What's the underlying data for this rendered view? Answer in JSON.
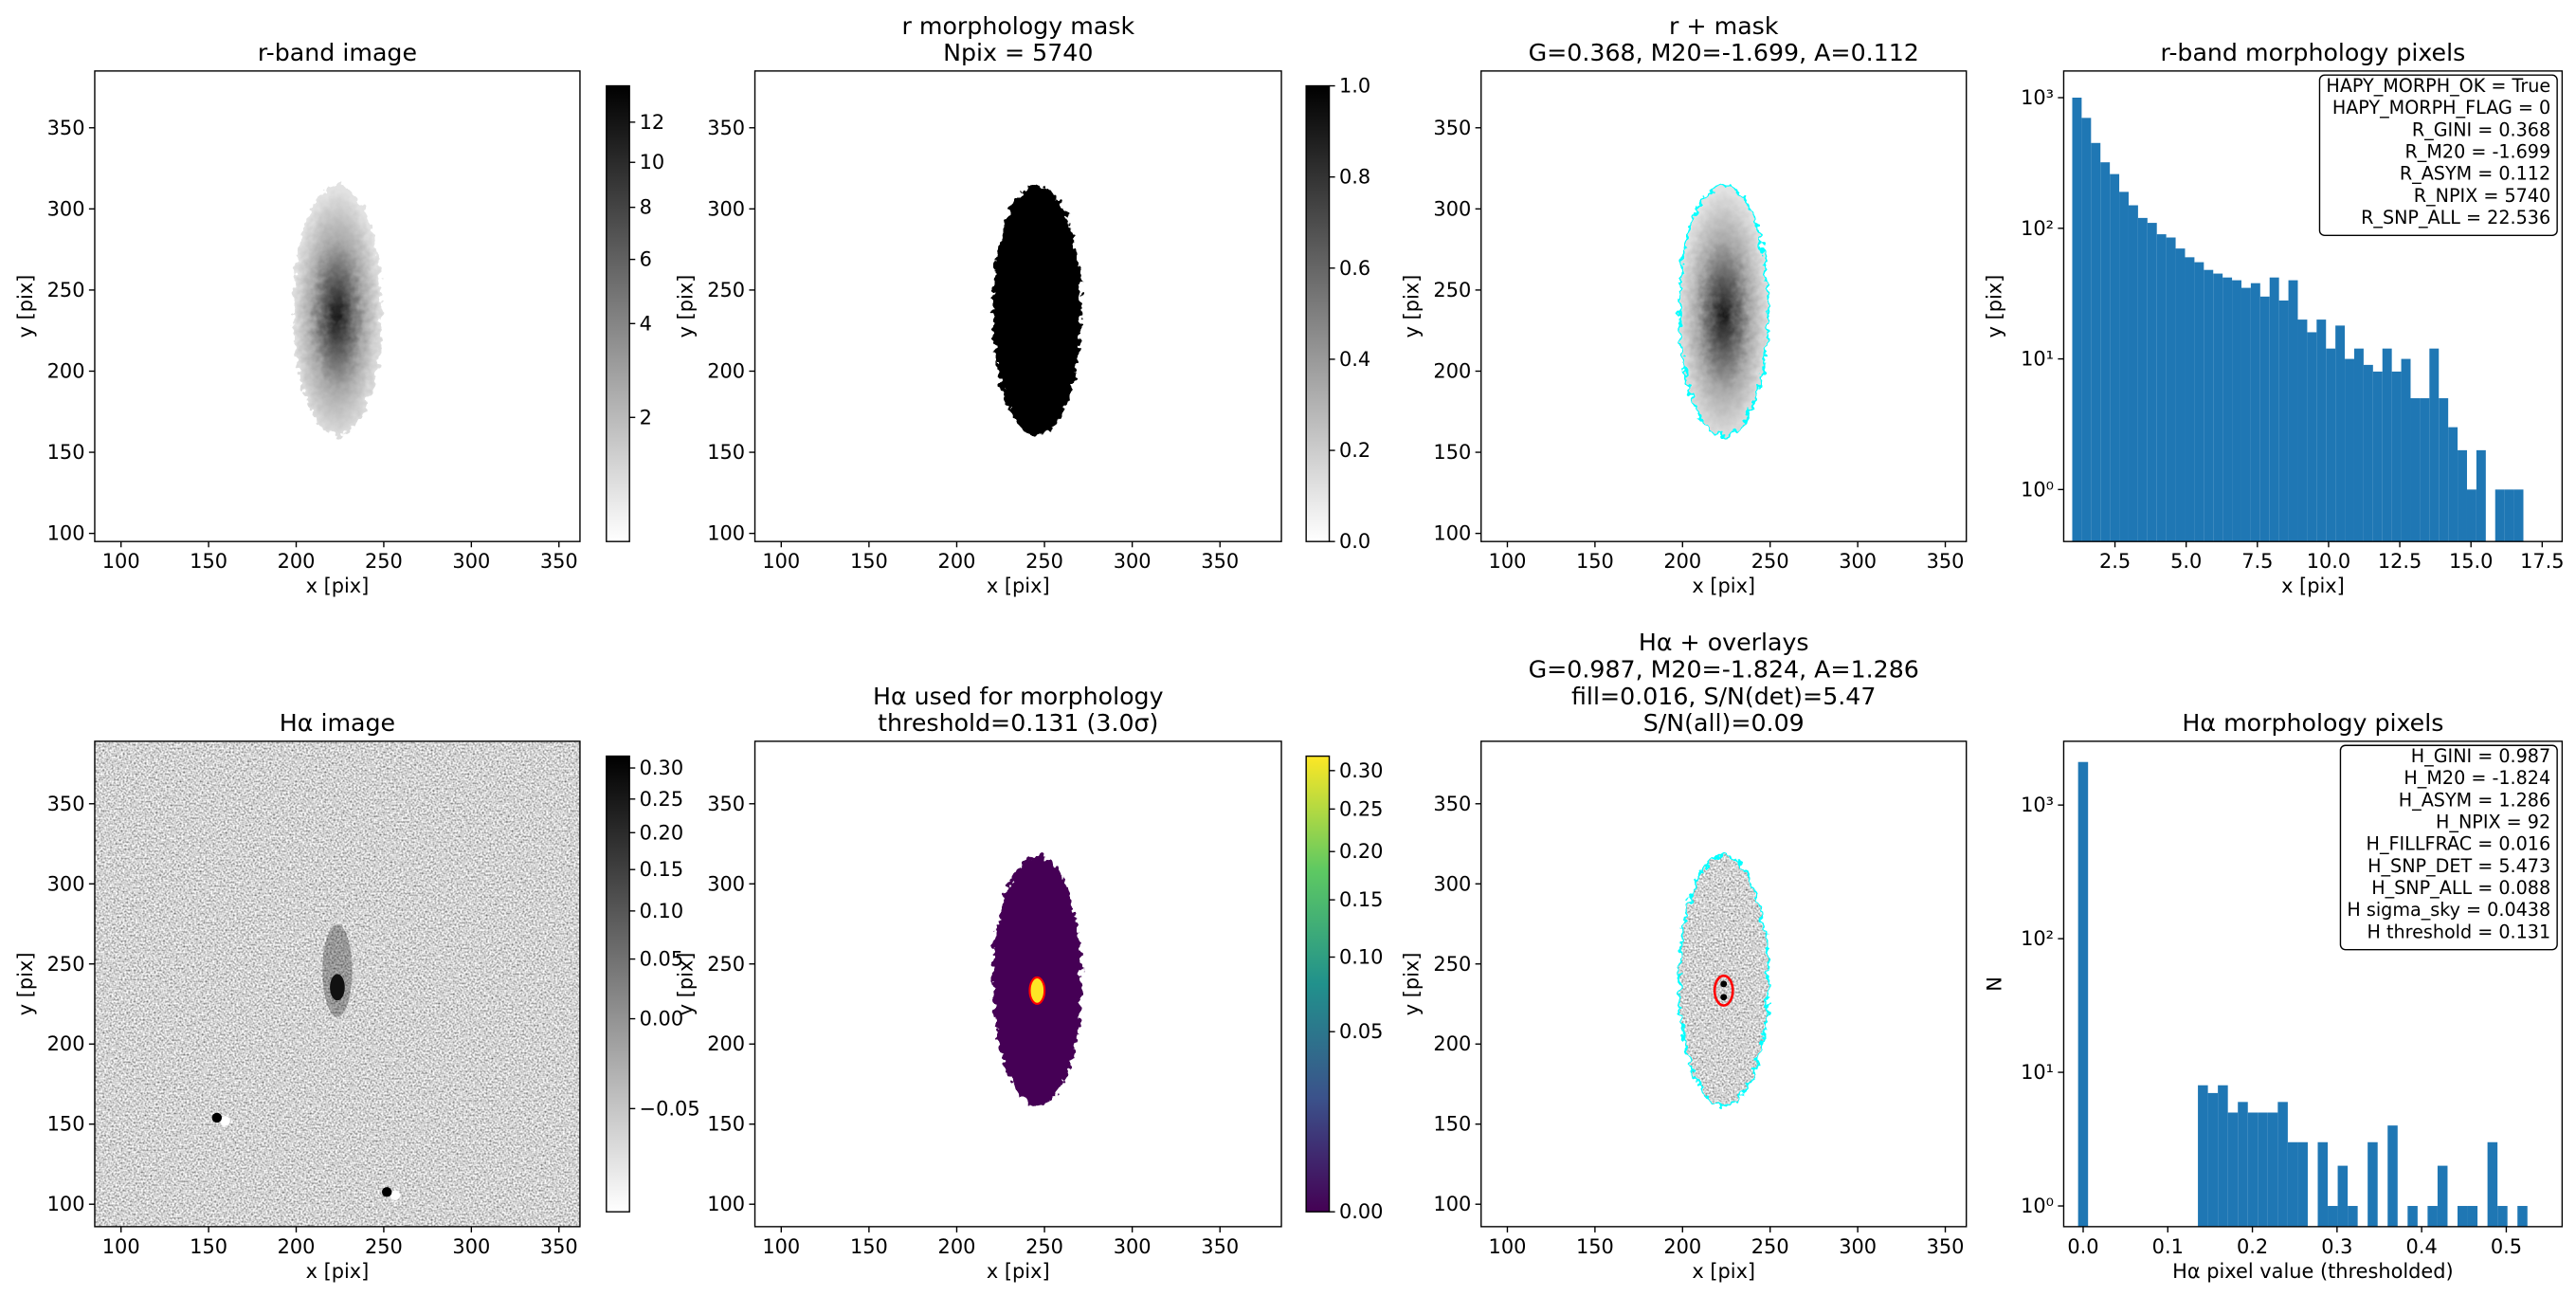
{
  "chart_data": [
    {
      "type": "image",
      "title": [
        "r-band image"
      ],
      "xlabel": "x [pix]",
      "ylabel": "y [pix]",
      "xlim": [
        85,
        362
      ],
      "ylim": [
        95,
        385
      ],
      "xticks": [
        100,
        150,
        200,
        250,
        300,
        350
      ],
      "yticks": [
        100,
        150,
        200,
        250,
        300,
        350
      ],
      "colorbar": {
        "colormap": "gray_r",
        "scale": "sqrt",
        "clim": [
          1.04,
          13.98
        ],
        "ticks": [
          2,
          4,
          6,
          8,
          10,
          12
        ]
      }
    },
    {
      "type": "image",
      "title": [
        "r morphology mask",
        "Npix = 5740"
      ],
      "xlabel": "x [pix]",
      "ylabel": "y [pix]",
      "xlim": [
        85,
        385
      ],
      "ylim": [
        95,
        385
      ],
      "xticks": [
        100,
        150,
        200,
        250,
        300,
        350
      ],
      "yticks": [
        100,
        150,
        200,
        250,
        300,
        350
      ],
      "colorbar": {
        "colormap": "gray_r",
        "scale": "linear",
        "clim": [
          0,
          1
        ],
        "ticks": [
          {
            "value": 0,
            "label": "0.0"
          },
          0.2,
          0.4,
          0.6,
          0.8,
          {
            "value": 1,
            "label": "1.0"
          }
        ]
      }
    },
    {
      "type": "image",
      "title": [
        "r + mask",
        "G=0.368, M20=-1.699, A=0.112"
      ],
      "xlabel": "x [pix]",
      "ylabel": "y [pix]",
      "xlim": [
        85,
        362
      ],
      "ylim": [
        95,
        385
      ],
      "xticks": [
        100,
        150,
        200,
        250,
        300,
        350
      ],
      "yticks": [
        100,
        150,
        200,
        250,
        300,
        350
      ]
    },
    {
      "type": "histogram",
      "title": [
        "r-band morphology pixels"
      ],
      "xlabel": "x [pix]",
      "ylabel": "y [pix]",
      "xlim": [
        0.7,
        18.2
      ],
      "ylim": [
        0.4,
        1600
      ],
      "yscale": "log",
      "color": "#1f77b4",
      "xticks": [
        2.5,
        {
          "value": 5,
          "label": "5.0"
        },
        7.5,
        {
          "value": 10,
          "label": "10.0"
        },
        12.5,
        {
          "value": 15,
          "label": "15.0"
        },
        17.5
      ],
      "yticks": [
        {
          "value": 1,
          "label": "10⁰"
        },
        {
          "value": 10,
          "label": "10¹"
        },
        {
          "value": 100,
          "label": "10²"
        },
        {
          "value": 1000,
          "label": "10³"
        }
      ],
      "bins": [
        1.0,
        1.33,
        1.66,
        1.99,
        2.32,
        2.65,
        2.98,
        3.31,
        3.64,
        3.97,
        4.3,
        4.63,
        4.96,
        5.29,
        5.62,
        5.95,
        6.28,
        6.61,
        6.94,
        7.27,
        7.6,
        7.93,
        8.26,
        8.59,
        8.92,
        9.25,
        9.58,
        9.91,
        10.24,
        10.57,
        10.9,
        11.23,
        11.56,
        11.89,
        12.22,
        12.55,
        12.88,
        13.21,
        13.54,
        13.87,
        14.2,
        14.53,
        14.86,
        15.19,
        15.52,
        15.85,
        16.18,
        16.51,
        16.84
      ],
      "values": [
        1000,
        700,
        450,
        320,
        260,
        190,
        150,
        120,
        110,
        90,
        85,
        70,
        60,
        55,
        48,
        45,
        42,
        40,
        35,
        38,
        30,
        42,
        28,
        40,
        20,
        16,
        20,
        12,
        18,
        10,
        12,
        9,
        8,
        12,
        8,
        10,
        5,
        5,
        12,
        5,
        3,
        2,
        1,
        2,
        0,
        1,
        1,
        1
      ],
      "annotations": [
        "HAPY_MORPH_OK = True",
        "HAPY_MORPH_FLAG = 0",
        "R_GINI = 0.368",
        "R_M20 = -1.699",
        "R_ASYM = 0.112",
        "R_NPIX = 5740",
        "R_SNP_ALL = 22.536"
      ]
    },
    {
      "type": "image",
      "title": [
        "Hα image"
      ],
      "xlabel": "x [pix]",
      "ylabel": "y [pix]",
      "xlim": [
        85,
        362
      ],
      "ylim": [
        86,
        389
      ],
      "xticks": [
        100,
        150,
        200,
        250,
        300,
        350
      ],
      "yticks": [
        100,
        150,
        200,
        250,
        300,
        350
      ],
      "colorbar": {
        "colormap": "gray_r",
        "scale": "sqrt",
        "clim": [
          -0.07,
          0.32
        ],
        "ticks": [
          {
            "value": -0.05,
            "label": "−0.05"
          },
          {
            "value": 0,
            "label": "0.00"
          },
          0.05,
          {
            "value": 0.1,
            "label": "0.10"
          },
          0.15,
          {
            "value": 0.2,
            "label": "0.20"
          },
          0.25,
          {
            "value": 0.3,
            "label": "0.30"
          }
        ]
      }
    },
    {
      "type": "image",
      "title": [
        "Hα used for morphology",
        "threshold=0.131 (3.0σ)"
      ],
      "xlabel": "x [pix]",
      "ylabel": "y [pix]",
      "xlim": [
        85,
        385
      ],
      "ylim": [
        86,
        389
      ],
      "xticks": [
        100,
        150,
        200,
        250,
        300,
        350
      ],
      "yticks": [
        100,
        150,
        200,
        250,
        300,
        350
      ],
      "colorbar": {
        "colormap": "viridis",
        "scale": "sqrt",
        "clim": [
          0,
          0.32
        ],
        "ticks": [
          {
            "value": 0,
            "label": "0.00"
          },
          0.05,
          {
            "value": 0.1,
            "label": "0.10"
          },
          0.15,
          {
            "value": 0.2,
            "label": "0.20"
          },
          0.25,
          {
            "value": 0.3,
            "label": "0.30"
          }
        ]
      }
    },
    {
      "type": "image",
      "title": [
        "Hα + overlays",
        "G=0.987, M20=-1.824, A=1.286",
        "fill=0.016, S/N(det)=5.47",
        "S/N(all)=0.09"
      ],
      "xlabel": "x [pix]",
      "ylabel": "y [pix]",
      "xlim": [
        85,
        362
      ],
      "ylim": [
        86,
        389
      ],
      "xticks": [
        100,
        150,
        200,
        250,
        300,
        350
      ],
      "yticks": [
        100,
        150,
        200,
        250,
        300,
        350
      ]
    },
    {
      "type": "histogram",
      "title": [
        "Hα morphology pixels"
      ],
      "xlabel": "Hα pixel value (thresholded)",
      "ylabel": "N",
      "xlim": [
        -0.023,
        0.566
      ],
      "ylim": [
        0.7,
        3000
      ],
      "yscale": "log",
      "color": "#1f77b4",
      "xticks": [
        {
          "value": 0,
          "label": "0.0"
        },
        0.1,
        0.2,
        0.3,
        0.4,
        0.5
      ],
      "yticks": [
        {
          "value": 1,
          "label": "10⁰"
        },
        {
          "value": 10,
          "label": "10¹"
        },
        {
          "value": 100,
          "label": "10²"
        },
        {
          "value": 1000,
          "label": "10³"
        }
      ],
      "bins": [
        -0.006,
        0.0058,
        0.0176,
        0.0294,
        0.0412,
        0.053,
        0.0648,
        0.0766,
        0.0884,
        0.1002,
        0.112,
        0.1238,
        0.1356,
        0.1474,
        0.1592,
        0.171,
        0.1828,
        0.1946,
        0.2064,
        0.2182,
        0.23,
        0.2418,
        0.2536,
        0.2654,
        0.2772,
        0.289,
        0.3008,
        0.3126,
        0.3244,
        0.3362,
        0.348,
        0.3598,
        0.3716,
        0.3834,
        0.3952,
        0.407,
        0.4188,
        0.4306,
        0.4424,
        0.4542,
        0.466,
        0.4778,
        0.4896,
        0.5014,
        0.5132,
        0.525
      ],
      "values": [
        2100,
        0,
        0,
        0,
        0,
        0,
        0,
        0,
        0,
        0,
        0,
        0,
        8,
        7,
        8,
        5,
        6,
        5,
        5,
        5,
        6,
        3,
        3,
        0,
        3,
        1,
        2,
        1,
        0,
        3,
        0,
        4,
        0,
        1,
        0,
        1,
        2,
        0,
        1,
        1,
        0,
        3,
        1,
        0,
        1
      ],
      "annotations": [
        "H_GINI = 0.987",
        "H_M20 = -1.824",
        "H_ASYM = 1.286",
        "H_NPIX = 92",
        "H_FILLFRAC = 0.016",
        "H_SNP_DET = 5.473",
        "H_SNP_ALL = 0.088",
        "H sigma_sky = 0.0438",
        "H threshold = 0.131"
      ]
    }
  ]
}
